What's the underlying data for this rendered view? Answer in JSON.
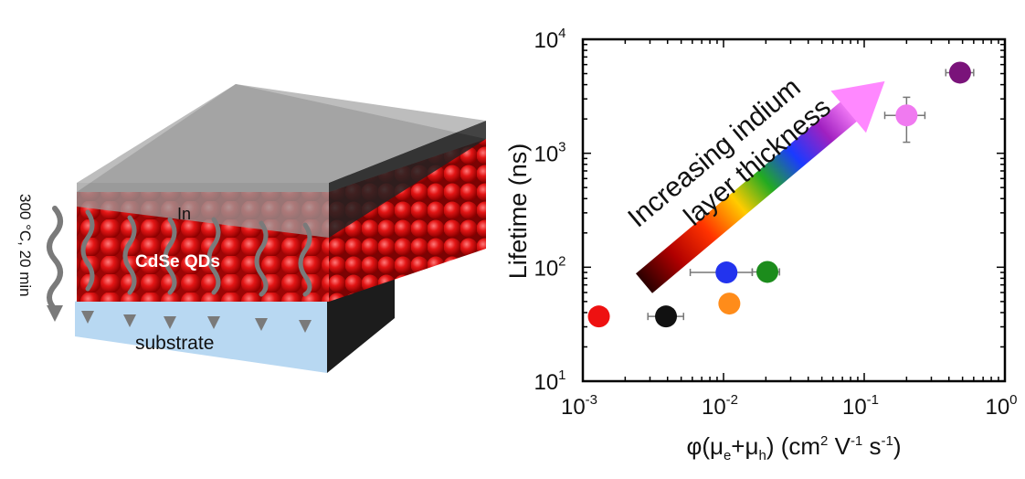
{
  "schematic": {
    "top_layer_label": "In",
    "qd_label": "CdSe QDs",
    "substrate_label": "substrate",
    "anneal_label": "300 °C, 20 min",
    "colors": {
      "indium": "#8c8c8c",
      "qd": "#e01010",
      "substrate": "#b8d8f2",
      "side": "#1c1c1c",
      "arrow": "#7a7a7a"
    }
  },
  "chart_data": {
    "type": "scatter",
    "xscale": "log",
    "yscale": "log",
    "xlim": [
      0.001,
      1
    ],
    "ylim": [
      10,
      10000
    ],
    "xlabel": "φ(μe+μh) (cm2 V-1 s-1)",
    "xlabel_parts": {
      "phi": "φ(μ",
      "e": "e",
      "plus": "+μ",
      "h": "h",
      "units": ") (cm",
      "sq": "2",
      "v": " V",
      "neg1a": "-1",
      "s": " s",
      "neg1b": "-1",
      "close": ")"
    },
    "ylabel": "Lifetime (ns)",
    "xticks": [
      {
        "base": "10",
        "exp": "-3"
      },
      {
        "base": "10",
        "exp": "-2"
      },
      {
        "base": "10",
        "exp": "-1"
      },
      {
        "base": "10",
        "exp": "0"
      }
    ],
    "yticks": [
      {
        "base": "10",
        "exp": "1"
      },
      {
        "base": "10",
        "exp": "2"
      },
      {
        "base": "10",
        "exp": "3"
      },
      {
        "base": "10",
        "exp": "4"
      }
    ],
    "points": [
      {
        "x": 0.0013,
        "y": 37,
        "color": "#ee1111",
        "xerr": null
      },
      {
        "x": 0.0039,
        "y": 37,
        "color": "#111111",
        "xerr": [
          0.0029,
          0.0052
        ]
      },
      {
        "x": 0.011,
        "y": 48,
        "color": "#ff8c1a",
        "xerr": null
      },
      {
        "x": 0.0105,
        "y": 90,
        "color": "#2233ee",
        "xerr": [
          0.0058,
          0.016
        ]
      },
      {
        "x": 0.0205,
        "y": 91,
        "color": "#1c8c1c",
        "xerr": [
          0.016,
          0.025
        ]
      },
      {
        "x": 0.2,
        "y": 2150,
        "color": "#f07af0",
        "xerr": [
          0.14,
          0.27
        ],
        "yerr": [
          1250,
          3100
        ]
      },
      {
        "x": 0.48,
        "y": 5100,
        "color": "#7a137a",
        "xerr": [
          0.38,
          0.6
        ]
      }
    ],
    "annotation": {
      "line1": "Increasing indium",
      "line2": "layer thickness"
    },
    "grid": false,
    "legend": false
  }
}
